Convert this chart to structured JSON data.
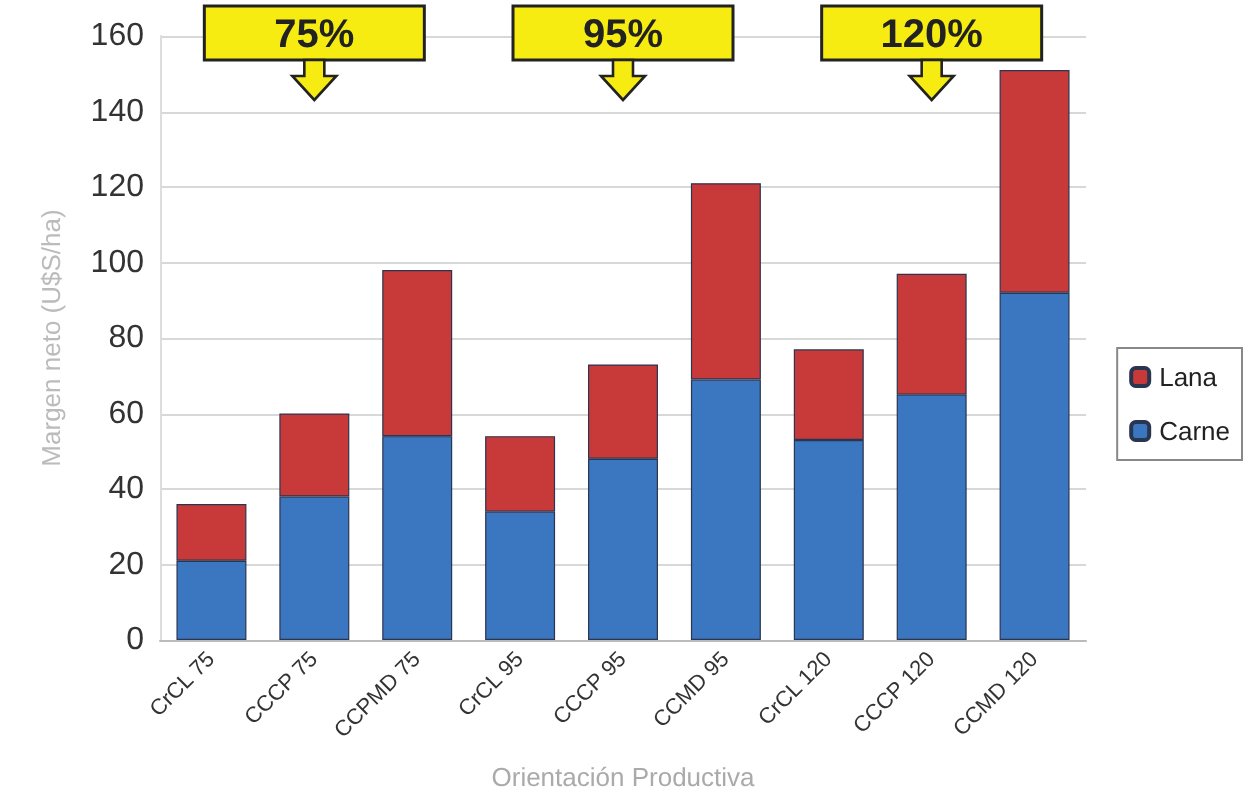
{
  "chart_data": {
    "type": "bar",
    "stacked": true,
    "ylabel": "Margen neto (U$S/ha)",
    "xlabel": "Orientación Productiva",
    "categories": [
      "CrCL 75",
      "CCCP 75",
      "CCPMD 75",
      "CrCL 95",
      "CCCP 95",
      "CCMD 95",
      "CrCL 120",
      "CCCP 120",
      "CCMD 120"
    ],
    "series": [
      {
        "name": "Carne",
        "color": "#3b76c0",
        "values": [
          21,
          38,
          54,
          34,
          48,
          69,
          53,
          65,
          92
        ]
      },
      {
        "name": "Lana",
        "color": "#c83a3a",
        "values": [
          15,
          22,
          44,
          20,
          25,
          52,
          24,
          32,
          59
        ]
      }
    ],
    "ylim": [
      0,
      160
    ],
    "yticks": [
      0,
      20,
      40,
      60,
      80,
      100,
      120,
      140,
      160
    ],
    "grid": "y",
    "legend": "right",
    "annotations": [
      "75%",
      "95%",
      "120%"
    ]
  }
}
